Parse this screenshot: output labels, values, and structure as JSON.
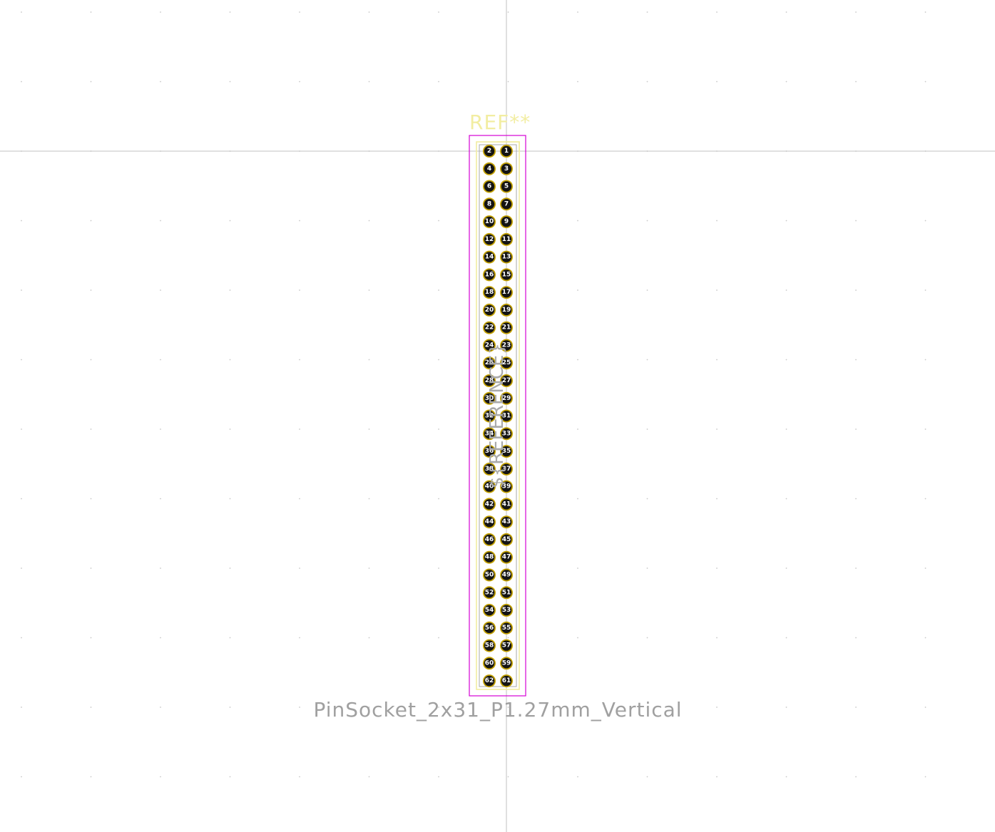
{
  "footprint": {
    "reference": "REF**",
    "value": "PinSocket_2x31_P1.27mm_Vertical",
    "fab_reference": "${REFERENCE}",
    "pin_count": 62,
    "columns": 2,
    "rows": 31,
    "pitch_mm": 1.27,
    "pad_labels_right_column": [
      "1",
      "3",
      "5",
      "7",
      "9",
      "11",
      "13",
      "15",
      "17",
      "19",
      "21",
      "23",
      "25",
      "27",
      "29",
      "31",
      "33",
      "35",
      "37",
      "39",
      "41",
      "43",
      "45",
      "47",
      "49",
      "51",
      "53",
      "55",
      "57",
      "59",
      "61"
    ],
    "pad_labels_left_column": [
      "2",
      "4",
      "6",
      "8",
      "10",
      "12",
      "14",
      "16",
      "18",
      "20",
      "22",
      "24",
      "26",
      "28",
      "30",
      "32",
      "34",
      "36",
      "38",
      "40",
      "42",
      "44",
      "46",
      "48",
      "50",
      "52",
      "54",
      "56",
      "58",
      "60",
      "62"
    ]
  },
  "colors": {
    "background": "#ffffff",
    "grid_dot": "#c8c8c8",
    "crosshair": "#c0c0c0",
    "silkscreen": "#f2eda1",
    "pad_copper": "#c2a000",
    "pad_hole": "#141414",
    "courtyard": "#d600d6",
    "fab": "#aaaaaa",
    "value_text": "#a0a0a0"
  },
  "icons": {
    "crosshair": "crosshair-cursor-icon"
  }
}
